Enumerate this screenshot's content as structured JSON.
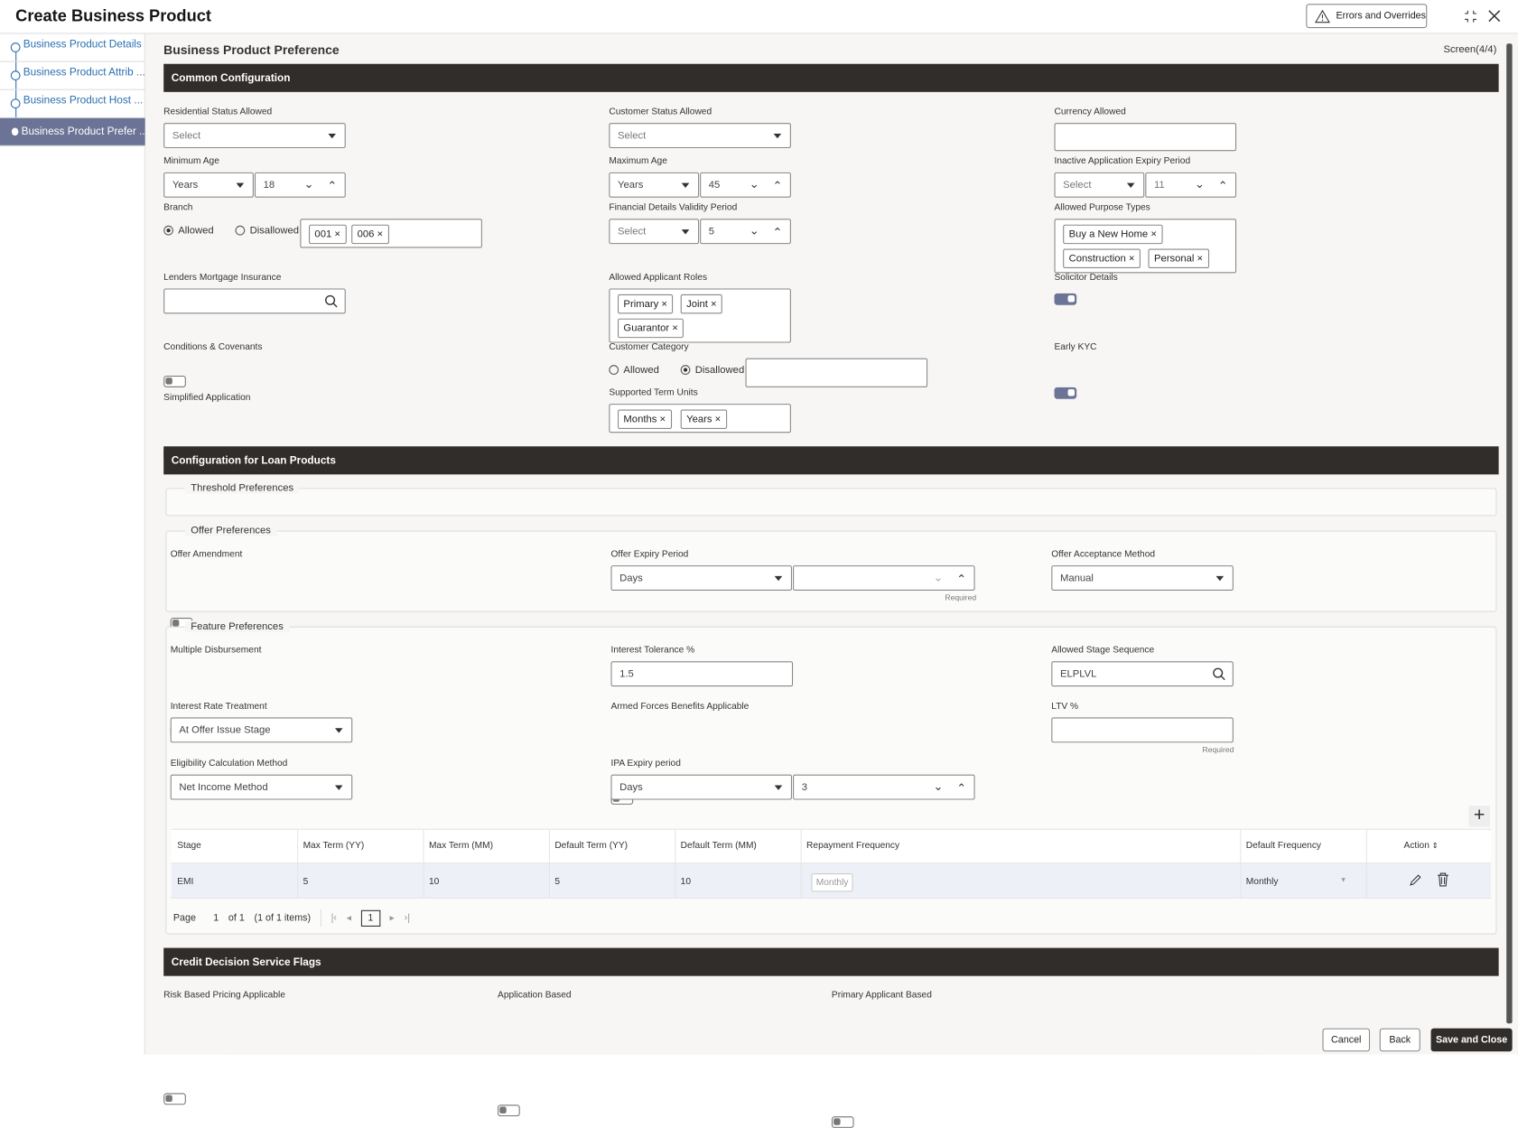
{
  "header": {
    "title": "Create Business Product",
    "errors_button": "Errors and Overrides"
  },
  "sidebar": {
    "items": [
      {
        "label": "Business Product Details"
      },
      {
        "label": "Business Product Attrib ..."
      },
      {
        "label": "Business Product Host ..."
      },
      {
        "label": "Business Product Prefer ..."
      }
    ],
    "active_index": 3
  },
  "page": {
    "title": "Business Product Preference",
    "screen": "Screen(4/4)"
  },
  "common": {
    "title": "Common Configuration",
    "residential_status": {
      "label": "Residential Status Allowed",
      "value": "Select"
    },
    "customer_status": {
      "label": "Customer Status Allowed",
      "value": "Select"
    },
    "currency": {
      "label": "Currency Allowed",
      "value": ""
    },
    "min_age": {
      "label": "Minimum Age",
      "unit": "Years",
      "value": "18"
    },
    "max_age": {
      "label": "Maximum Age",
      "unit": "Years",
      "value": "45"
    },
    "inactive_expiry": {
      "label": "Inactive Application Expiry Period",
      "unit": "Select",
      "value": "11"
    },
    "branch": {
      "label": "Branch",
      "allowed": "Allowed",
      "disallowed": "Disallowed",
      "selected": "Allowed",
      "tags": [
        "001",
        "006"
      ]
    },
    "financial_validity": {
      "label": "Financial Details Validity Period",
      "unit": "Select",
      "value": "5"
    },
    "purpose_types": {
      "label": "Allowed Purpose Types",
      "tags": [
        "Buy a New Home",
        "Construction",
        "Personal"
      ]
    },
    "lmi": {
      "label": "Lenders Mortgage Insurance",
      "value": ""
    },
    "applicant_roles": {
      "label": "Allowed Applicant Roles",
      "tags": [
        "Primary",
        "Joint",
        "Guarantor"
      ]
    },
    "solicitor": {
      "label": "Solicitor Details",
      "on": true
    },
    "conditions": {
      "label": "Conditions & Covenants",
      "on": false
    },
    "customer_category": {
      "label": "Customer Category",
      "allowed": "Allowed",
      "disallowed": "Disallowed",
      "selected": "Disallowed",
      "value": ""
    },
    "early_kyc": {
      "label": "Early KYC",
      "on": true
    },
    "simplified": {
      "label": "Simplified Application",
      "on": true
    },
    "term_units": {
      "label": "Supported Term Units",
      "tags": [
        "Months",
        "Years"
      ]
    }
  },
  "loan": {
    "title": "Configuration for Loan Products",
    "threshold": {
      "legend": "Threshold Preferences"
    },
    "offer": {
      "legend": "Offer Preferences",
      "amendment": {
        "label": "Offer Amendment",
        "on": false
      },
      "expiry": {
        "label": "Offer Expiry Period",
        "unit": "Days",
        "value": "",
        "hint": "Required"
      },
      "acceptance": {
        "label": "Offer Acceptance Method",
        "value": "Manual"
      }
    },
    "feature": {
      "legend": "Feature Preferences",
      "multiple_disbursement": {
        "label": "Multiple Disbursement",
        "on": true
      },
      "interest_tolerance": {
        "label": "Interest Tolerance %",
        "value": "1.5"
      },
      "stage_sequence": {
        "label": "Allowed Stage Sequence",
        "value": "ELPLVL"
      },
      "rate_treatment": {
        "label": "Interest Rate Treatment",
        "value": "At Offer Issue Stage"
      },
      "armed_forces": {
        "label": "Armed Forces Benefits Applicable",
        "on": false
      },
      "ltv": {
        "label": "LTV %",
        "value": "",
        "hint": "Required"
      },
      "eligibility": {
        "label": "Eligibility Calculation Method",
        "value": "Net Income Method"
      },
      "ipa_expiry": {
        "label": "IPA Expiry period",
        "unit": "Days",
        "value": "3"
      }
    },
    "table": {
      "columns": [
        "Stage",
        "Max Term (YY)",
        "Max Term (MM)",
        "Default Term (YY)",
        "Default Term (MM)",
        "Repayment Frequency",
        "Default Frequency",
        "Action"
      ],
      "rows": [
        {
          "stage": "EMI",
          "max_yy": "5",
          "max_mm": "10",
          "def_yy": "5",
          "def_mm": "10",
          "repayment": "Monthly",
          "default_freq": "Monthly"
        }
      ],
      "pagination": {
        "page_label": "Page",
        "page": "1",
        "of": "of 1",
        "items": "(1 of 1 items)",
        "current": "1"
      }
    }
  },
  "credit": {
    "title": "Credit Decision Service Flags",
    "risk": {
      "label": "Risk Based Pricing Applicable",
      "on": false
    },
    "application": {
      "label": "Application Based",
      "on": false
    },
    "primary": {
      "label": "Primary Applicant Based",
      "on": false
    }
  },
  "footer": {
    "cancel": "Cancel",
    "back": "Back",
    "save_close": "Save and Close"
  }
}
